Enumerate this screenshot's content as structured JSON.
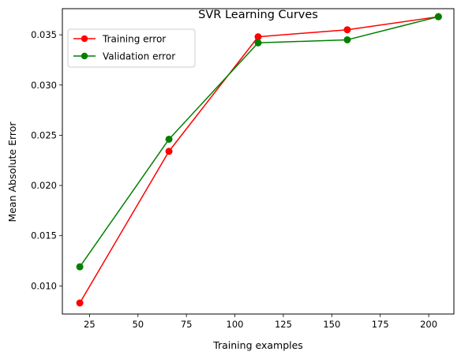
{
  "chart_data": {
    "type": "line",
    "title": "SVR Learning Curves",
    "xlabel": "Training examples",
    "ylabel": "Mean Absolute Error",
    "xlim": [
      11,
      213
    ],
    "ylim": [
      0.0072,
      0.0376
    ],
    "xticks": [
      25,
      50,
      75,
      100,
      125,
      150,
      175,
      200
    ],
    "xtick_labels": [
      "25",
      "50",
      "75",
      "100",
      "125",
      "150",
      "175",
      "200"
    ],
    "yticks": [
      0.01,
      0.015,
      0.02,
      0.025,
      0.03,
      0.035
    ],
    "ytick_labels": [
      "0.010",
      "0.015",
      "0.020",
      "0.025",
      "0.030",
      "0.035"
    ],
    "grid": false,
    "legend": "upper left",
    "x": [
      20,
      66,
      112,
      158,
      205
    ],
    "series": [
      {
        "name": "Training error",
        "color": "#ff0000",
        "marker": "circle",
        "values": [
          0.0083,
          0.0234,
          0.0348,
          0.0355,
          0.0368
        ]
      },
      {
        "name": "Validation error",
        "color": "#008000",
        "marker": "circle",
        "values": [
          0.0119,
          0.0246,
          0.0342,
          0.0345,
          0.0368
        ]
      }
    ]
  }
}
